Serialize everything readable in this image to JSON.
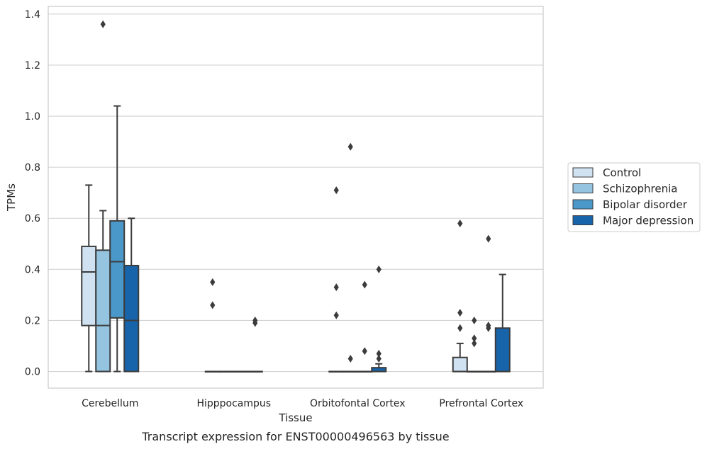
{
  "caption": "Transcript expression for ENST00000496563 by tissue",
  "chart_data": {
    "type": "boxplot",
    "title": "",
    "xlabel": "Tissue",
    "ylabel": "TPMs",
    "ylim": [
      -0.065,
      1.43
    ],
    "yticks": [
      "0.0",
      "0.2",
      "0.4",
      "0.6",
      "0.8",
      "1.0",
      "1.2",
      "1.4"
    ],
    "grid": true,
    "legend_position": "right",
    "categories": [
      "Cerebellum",
      "Hipppocampus",
      "Orbitofontal Cortex",
      "Prefrontal Cortex"
    ],
    "series": [
      {
        "name": "Control",
        "color": "#d0e1f2",
        "boxes": [
          {
            "whislo": 0.0,
            "q1": 0.18,
            "med": 0.39,
            "q3": 0.49,
            "whishi": 0.73,
            "fliers": []
          },
          {
            "whislo": 0.0,
            "q1": 0.0,
            "med": 0.0,
            "q3": 0.0,
            "whishi": 0.0,
            "fliers": [
              0.26,
              0.35
            ]
          },
          {
            "whislo": 0.0,
            "q1": 0.0,
            "med": 0.0,
            "q3": 0.0,
            "whishi": 0.0,
            "fliers": [
              0.22,
              0.33,
              0.71
            ]
          },
          {
            "whislo": 0.0,
            "q1": 0.0,
            "med": 0.0,
            "q3": 0.055,
            "whishi": 0.11,
            "fliers": [
              0.17,
              0.23,
              0.58
            ]
          }
        ]
      },
      {
        "name": "Schizophrenia",
        "color": "#94c4df",
        "boxes": [
          {
            "whislo": 0.0,
            "q1": 0.0,
            "med": 0.18,
            "q3": 0.475,
            "whishi": 0.63,
            "fliers": [
              1.36
            ]
          },
          {
            "whislo": 0.0,
            "q1": 0.0,
            "med": 0.0,
            "q3": 0.0,
            "whishi": 0.0,
            "fliers": []
          },
          {
            "whislo": 0.0,
            "q1": 0.0,
            "med": 0.0,
            "q3": 0.0,
            "whishi": 0.0,
            "fliers": [
              0.05,
              0.88
            ]
          },
          {
            "whislo": 0.0,
            "q1": 0.0,
            "med": 0.0,
            "q3": 0.0,
            "whishi": 0.0,
            "fliers": [
              0.11,
              0.13,
              0.2
            ]
          }
        ]
      },
      {
        "name": "Bipolar disorder",
        "color": "#4a98c9",
        "boxes": [
          {
            "whislo": 0.0,
            "q1": 0.21,
            "med": 0.43,
            "q3": 0.59,
            "whishi": 1.04,
            "fliers": []
          },
          {
            "whislo": 0.0,
            "q1": 0.0,
            "med": 0.0,
            "q3": 0.0,
            "whishi": 0.0,
            "fliers": []
          },
          {
            "whislo": 0.0,
            "q1": 0.0,
            "med": 0.0,
            "q3": 0.0,
            "whishi": 0.0,
            "fliers": [
              0.08,
              0.34
            ]
          },
          {
            "whislo": 0.0,
            "q1": 0.0,
            "med": 0.0,
            "q3": 0.0,
            "whishi": 0.0,
            "fliers": [
              0.17,
              0.18,
              0.52
            ]
          }
        ]
      },
      {
        "name": "Major depression",
        "color": "#1764ab",
        "boxes": [
          {
            "whislo": 0.0,
            "q1": 0.0,
            "med": 0.2,
            "q3": 0.415,
            "whishi": 0.6,
            "fliers": []
          },
          {
            "whislo": 0.0,
            "q1": 0.0,
            "med": 0.0,
            "q3": 0.0,
            "whishi": 0.0,
            "fliers": [
              0.19,
              0.2
            ]
          },
          {
            "whislo": 0.0,
            "q1": 0.0,
            "med": 0.0,
            "q3": 0.015,
            "whishi": 0.03,
            "fliers": [
              0.05,
              0.07,
              0.4
            ]
          },
          {
            "whislo": 0.0,
            "q1": 0.0,
            "med": 0.0,
            "q3": 0.17,
            "whishi": 0.38,
            "fliers": []
          }
        ]
      }
    ]
  }
}
